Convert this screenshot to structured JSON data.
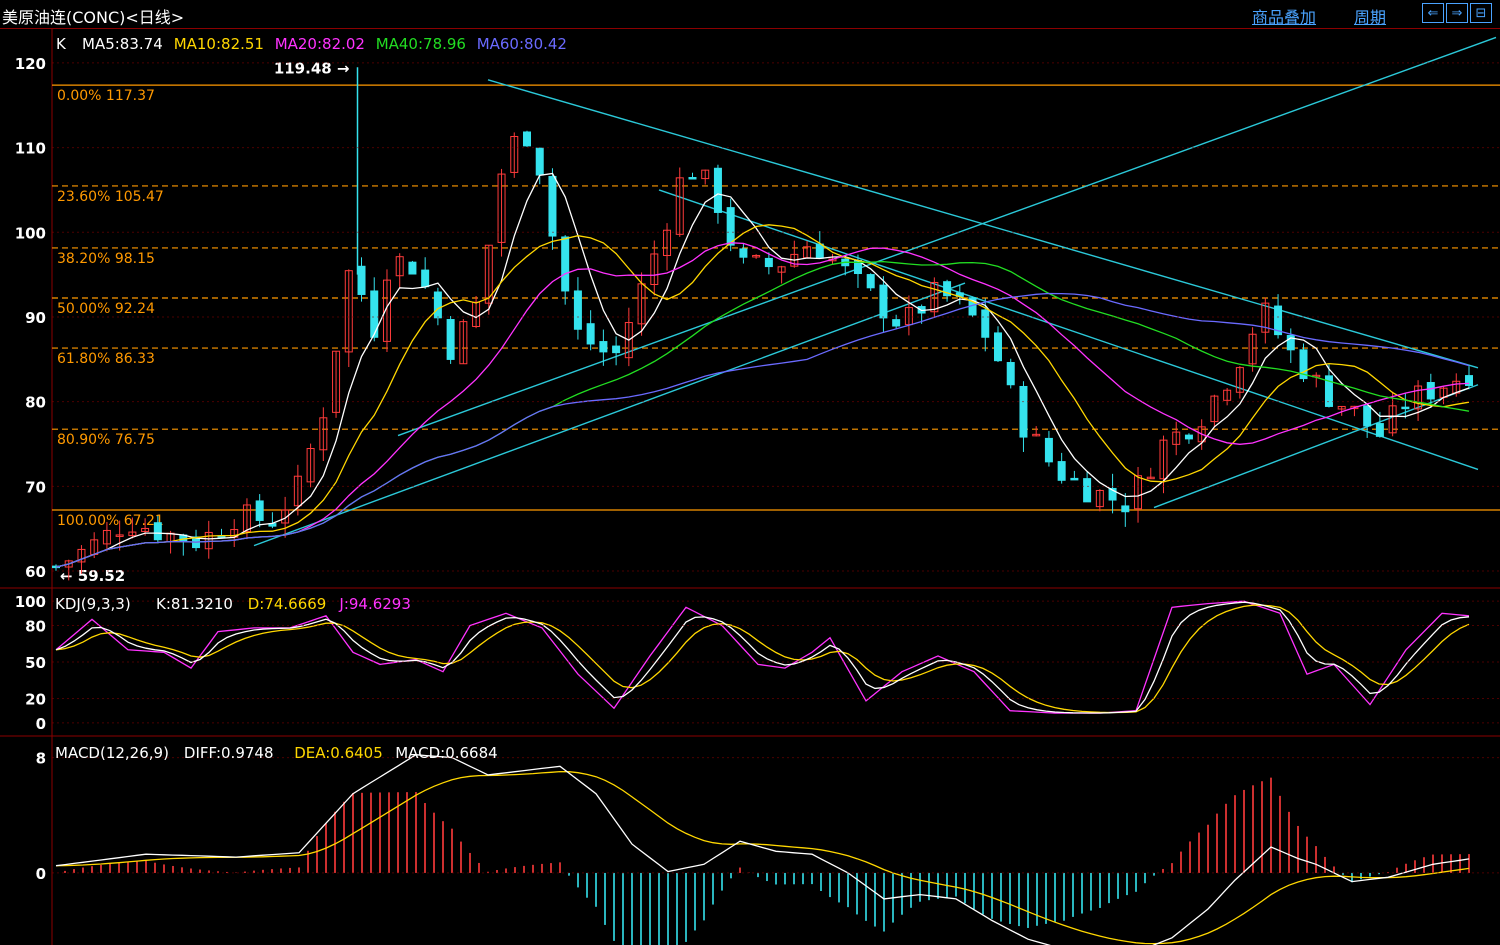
{
  "header": {
    "title": "美原油连(CONC)<日线>",
    "overlay_link": "商品叠加",
    "period_link": "周期",
    "nav_prev": "⇐",
    "nav_next": "⇒",
    "nav_third": "⊟"
  },
  "colors": {
    "up": "#ff3b3b",
    "down": "#35e3ee",
    "ma5": "#ffffff",
    "ma10": "#ffd700",
    "ma20": "#ff33ff",
    "ma40": "#22dd22",
    "ma60": "#6a6aff",
    "fib": "#ff9900",
    "trend": "#2bc8d8",
    "grid": "#8b0000"
  },
  "price_panel": {
    "label": "K",
    "legend": [
      {
        "text": "MA5:83.74",
        "color": "#ffffff"
      },
      {
        "text": "MA10:82.51",
        "color": "#ffd700"
      },
      {
        "text": "MA20:82.02",
        "color": "#ff33ff"
      },
      {
        "text": "MA40:78.96",
        "color": "#22dd22"
      },
      {
        "text": "MA60:80.42",
        "color": "#6a6aff"
      }
    ],
    "y_ticks": [
      "120",
      "110",
      "100",
      "90",
      "80",
      "70",
      "60"
    ],
    "y_tick_values": [
      120,
      110,
      100,
      90,
      80,
      70,
      60
    ],
    "ylim": [
      58,
      124
    ],
    "high_label": "119.48",
    "low_label": "59.52",
    "fib_levels": [
      {
        "label": "0.00% 117.37",
        "value": 117.37,
        "style": "solid"
      },
      {
        "label": "23.60% 105.47",
        "value": 105.47,
        "style": "dashed"
      },
      {
        "label": "38.20% 98.15",
        "value": 98.15,
        "style": "dashed"
      },
      {
        "label": "50.00% 92.24",
        "value": 92.24,
        "style": "dashed"
      },
      {
        "label": "61.80% 86.33",
        "value": 86.33,
        "style": "dashed"
      },
      {
        "label": "80.90% 76.75",
        "value": 76.75,
        "style": "dashed"
      },
      {
        "label": "100.00% 67.21",
        "value": 67.21,
        "style": "solid"
      }
    ]
  },
  "kdj_panel": {
    "legend": [
      {
        "text": "KDJ(9,3,3)",
        "color": "#ffffff"
      },
      {
        "text": "K:81.3210",
        "color": "#ffffff"
      },
      {
        "text": "D:74.6669",
        "color": "#ffd700"
      },
      {
        "text": "J:94.6293",
        "color": "#ff33ff"
      }
    ],
    "y_ticks": [
      "100",
      "80",
      "50",
      "20",
      "0"
    ],
    "y_tick_values": [
      100,
      80,
      50,
      20,
      0
    ],
    "ylim": [
      -10,
      110
    ]
  },
  "macd_panel": {
    "legend": [
      {
        "text": "MACD(12,26,9)",
        "color": "#ffffff"
      },
      {
        "text": "DIFF:0.9748",
        "color": "#ffffff"
      },
      {
        "text": "DEA:0.6405",
        "color": "#ffd700"
      },
      {
        "text": "MACD:0.6684",
        "color": "#ffffff"
      }
    ],
    "y_ticks": [
      "8",
      "0"
    ],
    "y_tick_values": [
      8,
      0
    ],
    "ylim": [
      -5,
      9.5
    ]
  },
  "chart_data": {
    "type": "candlestick",
    "title": "美原油连(CONC)<日线>",
    "candle_count": 112,
    "price_path": [
      [
        0,
        60.5
      ],
      [
        4,
        63
      ],
      [
        8,
        66
      ],
      [
        12,
        64.5
      ],
      [
        16,
        63.5
      ],
      [
        20,
        66.5
      ],
      [
        24,
        66
      ],
      [
        27,
        70
      ],
      [
        30,
        80
      ],
      [
        33,
        98
      ],
      [
        35,
        87
      ],
      [
        37,
        97
      ],
      [
        40,
        96
      ],
      [
        44,
        86
      ],
      [
        47,
        92
      ],
      [
        50,
        110
      ],
      [
        53,
        112
      ],
      [
        56,
        95
      ],
      [
        58,
        88
      ],
      [
        62,
        85
      ],
      [
        66,
        96
      ],
      [
        70,
        108
      ],
      [
        73,
        105
      ],
      [
        76,
        96
      ],
      [
        80,
        96
      ],
      [
        84,
        99
      ],
      [
        87,
        96
      ],
      [
        90,
        93
      ],
      [
        94,
        89
      ],
      [
        98,
        93
      ],
      [
        101,
        91
      ],
      [
        104,
        87
      ],
      [
        107,
        78
      ],
      [
        111,
        72
      ],
      [
        115,
        69.5
      ],
      [
        119,
        68
      ],
      [
        123,
        75
      ],
      [
        127,
        78
      ],
      [
        131,
        84
      ],
      [
        134,
        91
      ],
      [
        137,
        86
      ],
      [
        141,
        81
      ],
      [
        144,
        79
      ],
      [
        147,
        76
      ],
      [
        150,
        80
      ],
      [
        154,
        82
      ],
      [
        157,
        83.5
      ]
    ],
    "trendlines": [
      {
        "from": [
          48,
          118
        ],
        "to": [
          158,
          84
        ]
      },
      {
        "from": [
          67,
          105
        ],
        "to": [
          158,
          72
        ]
      },
      {
        "from": [
          22,
          63
        ],
        "to": [
          101,
          94
        ]
      },
      {
        "from": [
          38,
          76
        ],
        "to": [
          160,
          123
        ]
      },
      {
        "from": [
          122,
          67.5
        ],
        "to": [
          158,
          82
        ]
      }
    ],
    "kdj_final": {
      "K": 81.321,
      "D": 74.6669,
      "J": 94.6293
    },
    "macd_final": {
      "DIFF": 0.9748,
      "DEA": 0.6405,
      "MACD": 0.6684
    },
    "macd_path": [
      [
        0,
        0.5
      ],
      [
        10,
        1.3
      ],
      [
        20,
        1.1
      ],
      [
        27,
        1.4
      ],
      [
        33,
        5.5
      ],
      [
        40,
        8.2
      ],
      [
        44,
        8.0
      ],
      [
        48,
        6.8
      ],
      [
        52,
        7.1
      ],
      [
        56,
        7.4
      ],
      [
        60,
        5.5
      ],
      [
        64,
        2
      ],
      [
        68,
        0.1
      ],
      [
        72,
        0.6
      ],
      [
        76,
        2.2
      ],
      [
        80,
        1.5
      ],
      [
        84,
        1.3
      ],
      [
        88,
        0
      ],
      [
        92,
        -1.8
      ],
      [
        96,
        -1.5
      ],
      [
        100,
        -1.8
      ],
      [
        104,
        -3.3
      ],
      [
        108,
        -4.6
      ],
      [
        112,
        -5.3
      ],
      [
        116,
        -5.6
      ],
      [
        120,
        -5.5
      ],
      [
        124,
        -4.5
      ],
      [
        128,
        -2.5
      ],
      [
        131,
        -0.5
      ],
      [
        135,
        1.8
      ],
      [
        138,
        1
      ],
      [
        140,
        0.6
      ],
      [
        144,
        -0.6
      ],
      [
        148,
        -0.3
      ],
      [
        153,
        0.6
      ],
      [
        157,
        0.97
      ]
    ],
    "kdj_path": [
      [
        0,
        60
      ],
      [
        4,
        85
      ],
      [
        8,
        60
      ],
      [
        12,
        58
      ],
      [
        15,
        45
      ],
      [
        18,
        75
      ],
      [
        22,
        78
      ],
      [
        26,
        78
      ],
      [
        30,
        88
      ],
      [
        33,
        58
      ],
      [
        36,
        48
      ],
      [
        40,
        52
      ],
      [
        43,
        42
      ],
      [
        46,
        80
      ],
      [
        50,
        90
      ],
      [
        54,
        78
      ],
      [
        58,
        40
      ],
      [
        62,
        12
      ],
      [
        66,
        55
      ],
      [
        70,
        95
      ],
      [
        74,
        80
      ],
      [
        78,
        48
      ],
      [
        81,
        45
      ],
      [
        84,
        58
      ],
      [
        86,
        70
      ],
      [
        90,
        18
      ],
      [
        94,
        42
      ],
      [
        98,
        55
      ],
      [
        102,
        42
      ],
      [
        106,
        10
      ],
      [
        111,
        8
      ],
      [
        116,
        8
      ],
      [
        120,
        10
      ],
      [
        124,
        95
      ],
      [
        128,
        98
      ],
      [
        132,
        100
      ],
      [
        136,
        90
      ],
      [
        139,
        40
      ],
      [
        142,
        48
      ],
      [
        146,
        15
      ],
      [
        150,
        60
      ],
      [
        154,
        90
      ],
      [
        157,
        88
      ]
    ]
  }
}
